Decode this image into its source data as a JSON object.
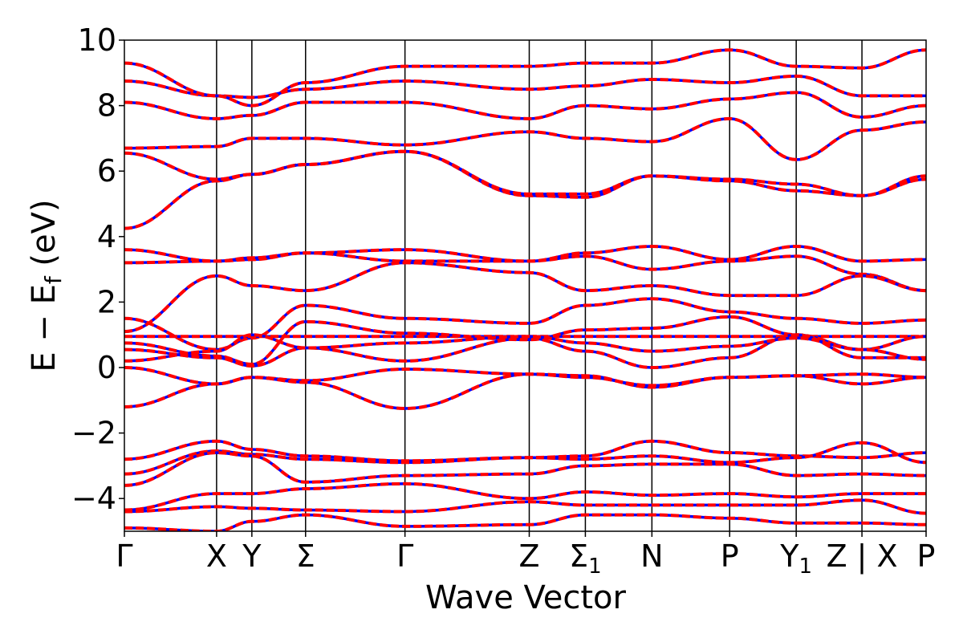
{
  "chart_data": {
    "type": "line",
    "xlabel": "Wave Vector",
    "ylabel": "E − E",
    "ylabel_subscript": "f",
    "ylabel_unit": " (eV)",
    "ylim": [
      -5,
      10
    ],
    "yticks": [
      10,
      8,
      6,
      4,
      2,
      0,
      -2,
      -4
    ],
    "grid": false,
    "x_labels": [
      {
        "label": "Γ",
        "sub": ""
      },
      {
        "label": "X",
        "sub": ""
      },
      {
        "label": "Y",
        "sub": ""
      },
      {
        "label": "Σ",
        "sub": ""
      },
      {
        "label": "Γ",
        "sub": ""
      },
      {
        "label": "Z",
        "sub": ""
      },
      {
        "label": "Σ",
        "sub": "1"
      },
      {
        "label": "N",
        "sub": ""
      },
      {
        "label": "P",
        "sub": ""
      },
      {
        "label": "Y",
        "sub": "1"
      },
      {
        "label": "Z | X",
        "sub": ""
      },
      {
        "label": "P",
        "sub": ""
      }
    ],
    "k_positions": [
      0,
      0.115,
      0.159,
      0.226,
      0.35,
      0.505,
      0.575,
      0.658,
      0.755,
      0.838,
      0.92,
      1.0
    ],
    "colors": {
      "series_a": "#0000ff",
      "series_b": "#ff0000",
      "frame": "#000000"
    },
    "series_style": "blue solid and red dashed overlapping",
    "series": [
      {
        "values": [
          4.25,
          5.7,
          5.9,
          6.2,
          6.6,
          5.25,
          5.2,
          5.85,
          5.7,
          5.4,
          5.25,
          5.75
        ]
      },
      {
        "values": [
          6.55,
          5.75,
          5.9,
          6.2,
          6.6,
          5.3,
          5.3,
          5.85,
          5.75,
          5.6,
          5.25,
          5.85
        ]
      },
      {
        "values": [
          6.7,
          6.75,
          7.0,
          7.0,
          6.8,
          7.2,
          7.0,
          6.9,
          7.6,
          6.35,
          7.25,
          7.5
        ]
      },
      {
        "values": [
          8.1,
          7.6,
          7.7,
          8.1,
          8.1,
          7.6,
          8.0,
          7.9,
          8.2,
          8.4,
          7.65,
          8.0
        ]
      },
      {
        "values": [
          8.75,
          8.3,
          8.25,
          8.5,
          8.75,
          8.5,
          8.6,
          8.8,
          8.7,
          8.9,
          8.3,
          8.3
        ]
      },
      {
        "values": [
          9.3,
          8.3,
          8.0,
          8.7,
          9.2,
          9.2,
          9.3,
          9.3,
          9.7,
          9.2,
          9.15,
          9.7
        ]
      },
      {
        "values": [
          3.2,
          3.25,
          3.3,
          3.5,
          3.6,
          3.25,
          3.5,
          3.7,
          3.3,
          3.7,
          3.25,
          3.3
        ]
      },
      {
        "values": [
          3.6,
          3.25,
          3.35,
          3.5,
          3.25,
          3.25,
          3.4,
          3.0,
          3.25,
          3.4,
          2.85,
          2.35
        ]
      },
      {
        "values": [
          1.1,
          2.8,
          2.5,
          2.35,
          3.2,
          2.9,
          2.35,
          2.5,
          2.2,
          2.2,
          2.8,
          2.35
        ]
      },
      {
        "values": [
          1.5,
          0.55,
          0.9,
          1.9,
          1.5,
          1.35,
          1.9,
          2.1,
          1.7,
          1.5,
          1.35,
          1.45
        ]
      },
      {
        "values": [
          0.95,
          0.95,
          0.95,
          0.95,
          0.95,
          0.95,
          0.95,
          0.95,
          0.95,
          0.95,
          0.95,
          0.95
        ]
      },
      {
        "values": [
          0.75,
          0.35,
          0.1,
          1.4,
          1.05,
          0.85,
          1.15,
          1.2,
          1.55,
          1.0,
          0.55,
          0.95
        ]
      },
      {
        "values": [
          0.55,
          0.3,
          0.05,
          0.6,
          0.2,
          0.9,
          0.5,
          0.0,
          0.3,
          1.0,
          0.3,
          0.3
        ]
      },
      {
        "values": [
          0.2,
          0.5,
          1.0,
          0.6,
          0.75,
          0.95,
          0.75,
          0.5,
          0.65,
          0.9,
          0.55,
          0.25
        ]
      },
      {
        "values": [
          0.0,
          -0.5,
          -0.3,
          -0.4,
          -0.05,
          -0.2,
          -0.25,
          -0.6,
          -0.3,
          -0.25,
          -0.2,
          -0.3
        ]
      },
      {
        "values": [
          -1.2,
          -0.5,
          -0.3,
          -0.45,
          -1.25,
          -0.2,
          -0.3,
          -0.55,
          -0.3,
          -0.25,
          -0.5,
          -0.3
        ]
      },
      {
        "values": [
          -2.8,
          -2.25,
          -2.5,
          -2.7,
          -2.85,
          -2.75,
          -2.7,
          -2.25,
          -2.6,
          -2.7,
          -2.75,
          -2.6
        ]
      },
      {
        "values": [
          -3.25,
          -2.55,
          -2.65,
          -2.8,
          -2.9,
          -2.75,
          -2.8,
          -2.7,
          -2.9,
          -2.75,
          -2.3,
          -2.9
        ]
      },
      {
        "values": [
          -3.6,
          -2.6,
          -2.7,
          -3.5,
          -3.3,
          -3.25,
          -3.0,
          -2.95,
          -2.95,
          -3.3,
          -3.25,
          -3.3
        ]
      },
      {
        "values": [
          -4.35,
          -3.85,
          -3.85,
          -3.7,
          -3.55,
          -4.0,
          -3.8,
          -3.9,
          -3.85,
          -3.95,
          -3.85,
          -3.85
        ]
      },
      {
        "values": [
          -4.4,
          -4.25,
          -4.3,
          -4.35,
          -4.4,
          -4.1,
          -4.2,
          -4.2,
          -4.2,
          -4.2,
          -4.05,
          -4.45
        ]
      },
      {
        "values": [
          -4.9,
          -5.0,
          -4.7,
          -4.5,
          -4.85,
          -4.8,
          -4.5,
          -4.5,
          -4.6,
          -4.75,
          -4.75,
          -4.8
        ]
      }
    ]
  }
}
